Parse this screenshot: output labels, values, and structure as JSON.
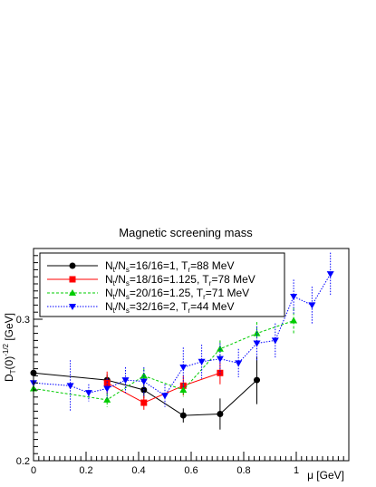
{
  "chart_data": {
    "type": "scatter",
    "title": "Magnetic screening mass",
    "xlabel": "μ [GeV]",
    "ylabel": "D_T(0)^{-1/2} [GeV]",
    "xlim": [
      0,
      1.2
    ],
    "ylim": [
      0.2,
      0.35
    ],
    "x_tick_labels": [
      "0",
      "0.2",
      "0.4",
      "0.6",
      "0.8",
      "1"
    ],
    "y_tick_labels": [
      "0.2",
      "0.3"
    ],
    "grid": false,
    "legend_position": "top-left",
    "series": [
      {
        "name": "N_t/N_s=16/16=1, T_r=88 MeV",
        "legend_parts": [
          "N",
          "t",
          "/N",
          "s",
          "=16/16=1, T",
          "r",
          "=88 MeV"
        ],
        "color": "#000000",
        "marker": "circle",
        "line_style": "solid",
        "points": [
          {
            "x": 0.0,
            "y": 0.262,
            "err": 0.004
          },
          {
            "x": 0.28,
            "y": 0.257,
            "err": 0.004
          },
          {
            "x": 0.42,
            "y": 0.25,
            "err": 0.006
          },
          {
            "x": 0.57,
            "y": 0.232,
            "err": 0.005
          },
          {
            "x": 0.71,
            "y": 0.233,
            "err": 0.011
          },
          {
            "x": 0.85,
            "y": 0.257,
            "err": 0.017
          }
        ]
      },
      {
        "name": "N_t/N_s=18/16=1.125, T_r=78 MeV",
        "legend_parts": [
          "N",
          "t",
          "/N",
          "s",
          "=18/16=1.125, T",
          "r",
          "=78 MeV"
        ],
        "color": "#ff0000",
        "marker": "square",
        "line_style": "solid",
        "points": [
          {
            "x": 0.28,
            "y": 0.255,
            "err": 0.008
          },
          {
            "x": 0.42,
            "y": 0.241,
            "err": 0.005
          },
          {
            "x": 0.57,
            "y": 0.253,
            "err": 0.007
          },
          {
            "x": 0.71,
            "y": 0.262,
            "err": 0.008
          }
        ]
      },
      {
        "name": "N_t/N_s=20/16=1.25, T_r=71 MeV",
        "legend_parts": [
          "N",
          "t",
          "/N",
          "s",
          "=20/16=1.25, T",
          "r",
          "=71 MeV"
        ],
        "color": "#00cc00",
        "marker": "triangle-up",
        "line_style": "dashed",
        "points": [
          {
            "x": 0.0,
            "y": 0.251,
            "err": 0.005
          },
          {
            "x": 0.28,
            "y": 0.243,
            "err": 0.005
          },
          {
            "x": 0.42,
            "y": 0.26,
            "err": 0.005
          },
          {
            "x": 0.57,
            "y": 0.25,
            "err": 0.005
          },
          {
            "x": 0.71,
            "y": 0.279,
            "err": 0.006
          },
          {
            "x": 0.85,
            "y": 0.29,
            "err": 0.008
          },
          {
            "x": 0.99,
            "y": 0.299,
            "err": 0.009
          }
        ]
      },
      {
        "name": "N_t/N_s=32/16=2, T_r=44 MeV",
        "legend_parts": [
          "N",
          "t",
          "/N",
          "s",
          "=32/16=2, T",
          "r",
          "=44 MeV"
        ],
        "color": "#0000ff",
        "marker": "triangle-down",
        "line_style": "dotted",
        "points": [
          {
            "x": 0.0,
            "y": 0.255,
            "err": 0.006
          },
          {
            "x": 0.14,
            "y": 0.253,
            "err": 0.018
          },
          {
            "x": 0.21,
            "y": 0.248,
            "err": 0.006
          },
          {
            "x": 0.28,
            "y": 0.251,
            "err": 0.007
          },
          {
            "x": 0.35,
            "y": 0.257,
            "err": 0.009
          },
          {
            "x": 0.42,
            "y": 0.256,
            "err": 0.01
          },
          {
            "x": 0.5,
            "y": 0.246,
            "err": 0.008
          },
          {
            "x": 0.57,
            "y": 0.266,
            "err": 0.014
          },
          {
            "x": 0.64,
            "y": 0.27,
            "err": 0.012
          },
          {
            "x": 0.71,
            "y": 0.272,
            "err": 0.011
          },
          {
            "x": 0.78,
            "y": 0.269,
            "err": 0.01
          },
          {
            "x": 0.85,
            "y": 0.283,
            "err": 0.012
          },
          {
            "x": 0.92,
            "y": 0.285,
            "err": 0.012
          },
          {
            "x": 0.99,
            "y": 0.316,
            "err": 0.012
          },
          {
            "x": 1.06,
            "y": 0.31,
            "err": 0.013
          },
          {
            "x": 1.13,
            "y": 0.332,
            "err": 0.015
          }
        ]
      }
    ]
  }
}
